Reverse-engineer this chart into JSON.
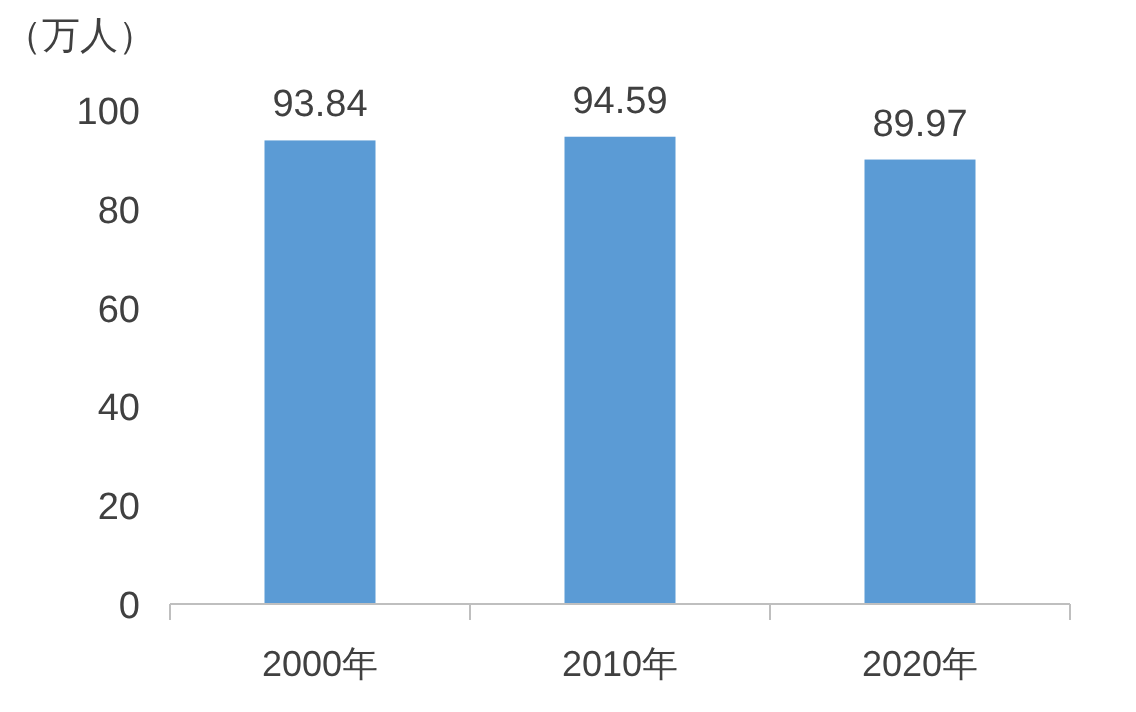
{
  "chart_data": {
    "type": "bar",
    "ylabel": "（万人）",
    "categories": [
      "2000年",
      "2010年",
      "2020年"
    ],
    "values": [
      93.84,
      94.59,
      89.97
    ],
    "color": "#5b9bd5",
    "ylim": [
      0,
      100
    ],
    "yticks": [
      0,
      20,
      40,
      60,
      80,
      100
    ],
    "data_labels": true,
    "grid": false
  }
}
